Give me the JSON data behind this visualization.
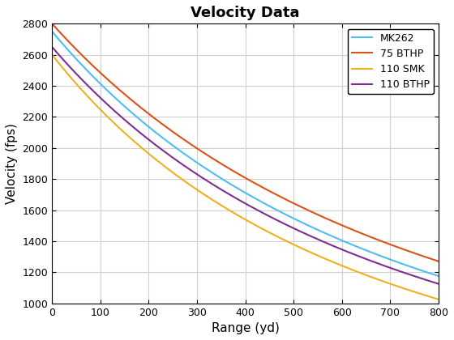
{
  "title": "Velocity Data",
  "xlabel": "Range (yd)",
  "ylabel": "Velocity (fps)",
  "xlim": [
    0,
    800
  ],
  "ylim": [
    1000,
    2800
  ],
  "xticks": [
    0,
    100,
    200,
    300,
    400,
    500,
    600,
    700,
    800
  ],
  "yticks": [
    1000,
    1200,
    1400,
    1600,
    1800,
    2000,
    2200,
    2400,
    2600,
    2800
  ],
  "legend_loc": "upper right",
  "linewidth": 1.5,
  "figsize": [
    5.6,
    4.2
  ],
  "dpi": 100,
  "background_color": "#ffffff",
  "grid_color": "#d0d0d0",
  "series": [
    {
      "label": "MK262",
      "color": "#4DBEEE",
      "v0": 2750,
      "v800": 1175,
      "k": 0.00087
    },
    {
      "label": "75 BTHP",
      "color": "#D95319",
      "v0": 2800,
      "v800": 1270,
      "k": 0.000795
    },
    {
      "label": "110 SMK",
      "color": "#EDB120",
      "v0": 2600,
      "v800": 1025,
      "k": 0.001165
    },
    {
      "label": "110 BTHP",
      "color": "#7E2F8E",
      "v0": 2650,
      "v800": 1125,
      "k": 0.00102
    }
  ]
}
